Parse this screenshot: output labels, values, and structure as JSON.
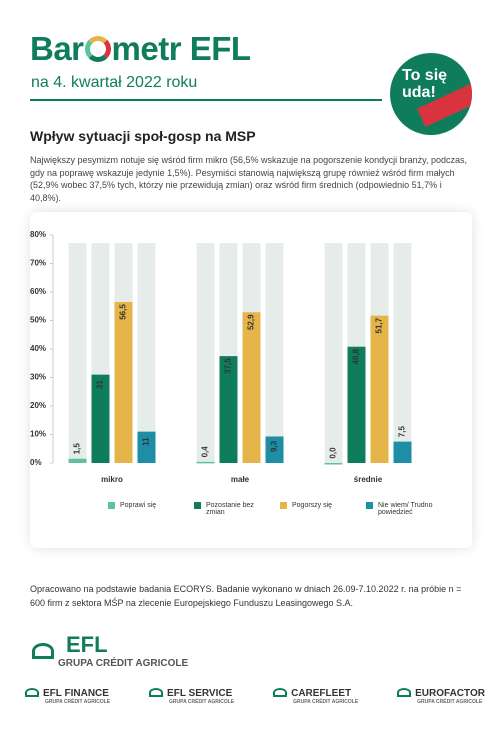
{
  "header": {
    "logo_start": "Bar",
    "logo_end": "metr EFL",
    "subtitle": "na 4. kwartał 2022 roku",
    "badge": "To się uda!"
  },
  "section_title": "Wpływ sytuacji społ-gosp na MSP",
  "intro": "Największy pesymizm notuje się wśród firm mikro (56,5% wskazuje na pogorszenie kondycji branży, podczas, gdy na poprawę wskazuje jedynie 1,5%). Pesymiści stanowią największą grupę również wśród firm małych (52,9% wobec 37,5% tych, którzy nie przewidują zmian) oraz wśród firm średnich (odpowiednio 51,7% i 40,8%).",
  "chart_data": {
    "type": "bar",
    "categories": [
      "mikro",
      "małe",
      "średnie"
    ],
    "series": [
      {
        "name": "Poprawi się",
        "color": "#5cc39a",
        "values": [
          1.5,
          0.4,
          0.0
        ],
        "value_labels": [
          "1,5",
          "0,4",
          "0,0"
        ]
      },
      {
        "name": "Pozostanie bez zmian",
        "color": "#0f7d5c",
        "values": [
          31,
          37.5,
          40.8
        ],
        "value_labels": [
          "31",
          "37,5",
          "40,8"
        ]
      },
      {
        "name": "Pogorszy się",
        "color": "#e6b54a",
        "values": [
          56.5,
          52.9,
          51.7
        ],
        "value_labels": [
          "56,5",
          "52,9",
          "51,7"
        ]
      },
      {
        "name": "Nie wiem/ Trudno powiedzieć",
        "color": "#1e8ea6",
        "values": [
          11,
          9.3,
          7.5
        ],
        "value_labels": [
          "11",
          "9,3",
          "7,5"
        ]
      }
    ],
    "ylim": [
      0,
      80
    ],
    "yticks": [
      {
        "value": 0,
        "label": "0%"
      },
      {
        "value": 10,
        "label": "10%"
      },
      {
        "value": 20,
        "label": "20%"
      },
      {
        "value": 30,
        "label": "30%"
      },
      {
        "value": 40,
        "label": "40%"
      },
      {
        "value": 50,
        "label": "50%"
      },
      {
        "value": 60,
        "label": "60%"
      },
      {
        "value": 70,
        "label": "70%"
      },
      {
        "value": 80,
        "label": "80%"
      }
    ],
    "background_bars": true,
    "background_color": "#e5ece9",
    "legend": "bottom"
  },
  "footer": {
    "note": "Opracowano na podstawie badania ECORYS. Badanie wykonano w dniach 26.09-7.10.2022 r. na próbie n = 600 firm z sektora MŚP na zlecenie Europejskiego Funduszu Leasingowego S.A.",
    "logo": "EFL",
    "logo_sub": "GRUPA CRÉDIT AGRICOLE",
    "brands": [
      {
        "name": "EFL FINANCE",
        "sub": "GRUPA CRÉDIT AGRICOLE"
      },
      {
        "name": "EFL SERVICE",
        "sub": "GRUPA CRÉDIT AGRICOLE"
      },
      {
        "name": "CAREFLEET",
        "sub": "GRUPA CRÉDIT AGRICOLE"
      },
      {
        "name": "EUROFACTOR",
        "sub": "GRUPA CRÉDIT AGRICOLE"
      }
    ]
  }
}
